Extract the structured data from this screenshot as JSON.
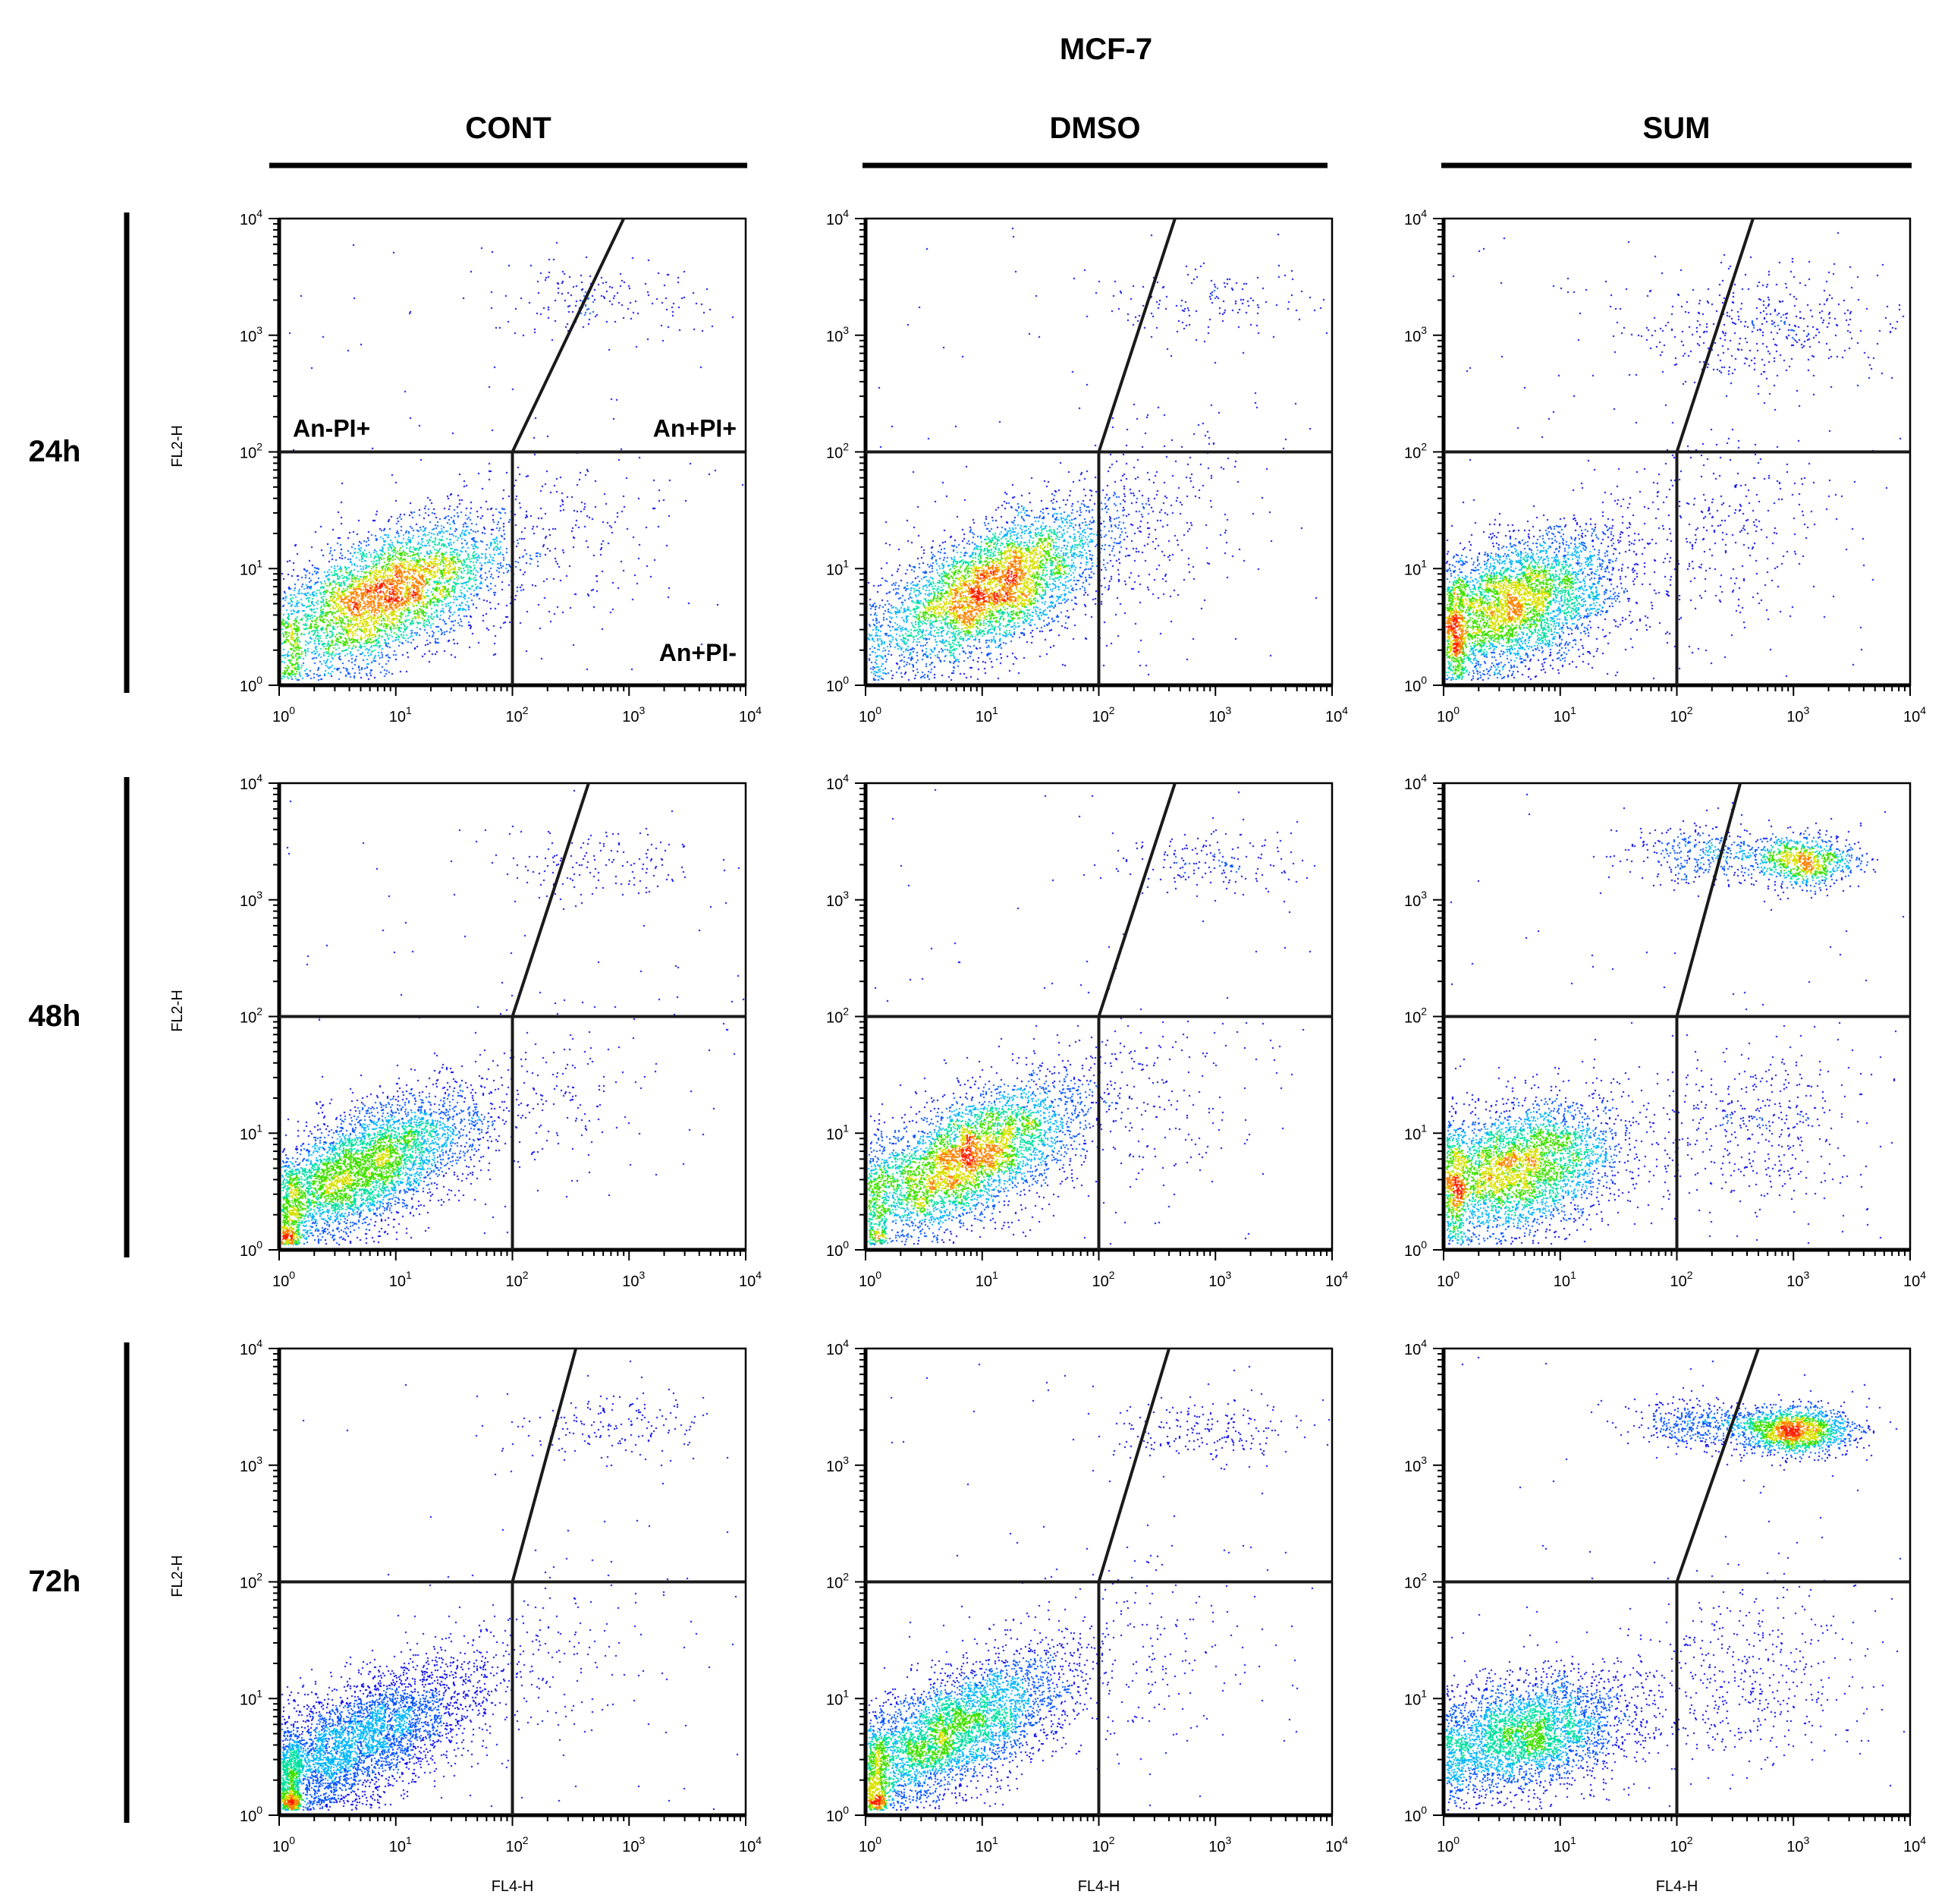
{
  "figure": {
    "title": "MCF-7",
    "columns": [
      "CONT",
      "DMSO",
      "SUM"
    ],
    "rows": [
      "24h",
      "48h",
      "72h"
    ],
    "y_axis_label": "FL2-H",
    "x_axis_label": "FL4-H",
    "tick_exponents": [
      "0",
      "1",
      "2",
      "3",
      "4"
    ],
    "tick_base": "10",
    "quadrant_labels": {
      "upper_left": "An-PI+",
      "upper_right": "An+PI+",
      "lower_right": "An+PI-"
    }
  },
  "colors": {
    "density_scale": [
      "#0000ee",
      "#0050ff",
      "#00b4ff",
      "#00e0a0",
      "#40e000",
      "#d8e000",
      "#ff8000",
      "#ff2000"
    ],
    "gate_line": "#1a1a1a",
    "axis": "#000000"
  },
  "chart_data": {
    "type": "scatter",
    "subtype": "flow-cytometry density dot plot",
    "x_scale": "log",
    "y_scale": "log",
    "xlim": [
      1,
      10000
    ],
    "ylim": [
      1,
      10000
    ],
    "xlabel": "FL4-H",
    "ylabel": "FL2-H",
    "panels": [
      {
        "column": "CONT",
        "row": "24h",
        "gate": {
          "x_threshold": 100,
          "y_threshold": 100,
          "diag_top_x": 900
        },
        "populations": [
          {
            "cx": 8,
            "cy": 6,
            "sx": 0.5,
            "sy": 0.32,
            "rho": 0.55,
            "n": 4200
          },
          {
            "cx": 600,
            "cy": 2000,
            "sx": 0.45,
            "sy": 0.15,
            "rho": 0.0,
            "n": 160
          },
          {
            "cx": 250,
            "cy": 20,
            "sx": 0.5,
            "sy": 0.45,
            "rho": 0.2,
            "n": 220
          }
        ],
        "uniform": 70
      },
      {
        "column": "DMSO",
        "row": "24h",
        "gate": {
          "x_threshold": 100,
          "y_threshold": 100,
          "diag_top_x": 450
        },
        "populations": [
          {
            "cx": 12,
            "cy": 7,
            "sx": 0.5,
            "sy": 0.33,
            "rho": 0.6,
            "n": 4400
          },
          {
            "cx": 800,
            "cy": 2000,
            "sx": 0.45,
            "sy": 0.15,
            "rho": 0.0,
            "n": 140
          },
          {
            "cx": 300,
            "cy": 30,
            "sx": 0.5,
            "sy": 0.5,
            "rho": 0.2,
            "n": 260
          }
        ],
        "uniform": 70
      },
      {
        "column": "SUM",
        "row": "24h",
        "gate": {
          "x_threshold": 100,
          "y_threshold": 100,
          "diag_top_x": 450
        },
        "populations": [
          {
            "cx": 4,
            "cy": 5,
            "sx": 0.45,
            "sy": 0.3,
            "rho": 0.4,
            "n": 4200
          },
          {
            "cx": 500,
            "cy": 1200,
            "sx": 0.55,
            "sy": 0.25,
            "rho": 0.1,
            "n": 420
          },
          {
            "cx": 200,
            "cy": 20,
            "sx": 0.55,
            "sy": 0.5,
            "rho": 0.2,
            "n": 380
          }
        ],
        "uniform": 80
      },
      {
        "column": "CONT",
        "row": "48h",
        "gate": {
          "x_threshold": 100,
          "y_threshold": 100,
          "diag_top_x": 450
        },
        "populations": [
          {
            "cx": 5,
            "cy": 5,
            "sx": 0.5,
            "sy": 0.32,
            "rho": 0.65,
            "n": 4400
          },
          {
            "cx": 600,
            "cy": 2000,
            "sx": 0.45,
            "sy": 0.15,
            "rho": 0.0,
            "n": 150
          },
          {
            "cx": 200,
            "cy": 20,
            "sx": 0.5,
            "sy": 0.45,
            "rho": 0.2,
            "n": 180
          }
        ],
        "uniform": 70
      },
      {
        "column": "DMSO",
        "row": "48h",
        "gate": {
          "x_threshold": 100,
          "y_threshold": 100,
          "diag_top_x": 450
        },
        "populations": [
          {
            "cx": 7,
            "cy": 6,
            "sx": 0.5,
            "sy": 0.33,
            "rho": 0.6,
            "n": 4400
          },
          {
            "cx": 900,
            "cy": 2200,
            "sx": 0.4,
            "sy": 0.15,
            "rho": 0.0,
            "n": 170
          },
          {
            "cx": 250,
            "cy": 20,
            "sx": 0.5,
            "sy": 0.45,
            "rho": 0.2,
            "n": 200
          }
        ],
        "uniform": 70
      },
      {
        "column": "SUM",
        "row": "48h",
        "gate": {
          "x_threshold": 100,
          "y_threshold": 100,
          "diag_top_x": 350
        },
        "populations": [
          {
            "cx": 4,
            "cy": 5,
            "sx": 0.45,
            "sy": 0.28,
            "rho": 0.3,
            "n": 3800
          },
          {
            "cx": 1200,
            "cy": 2200,
            "sx": 0.22,
            "sy": 0.11,
            "rho": 0.0,
            "n": 900
          },
          {
            "cx": 150,
            "cy": 2500,
            "sx": 0.3,
            "sy": 0.12,
            "rho": 0.0,
            "n": 350
          },
          {
            "cx": 500,
            "cy": 12,
            "sx": 0.45,
            "sy": 0.35,
            "rho": 0.1,
            "n": 420
          }
        ],
        "uniform": 90
      },
      {
        "column": "CONT",
        "row": "72h",
        "gate": {
          "x_threshold": 100,
          "y_threshold": 100,
          "diag_top_x": 350
        },
        "populations": [
          {
            "cx": 4,
            "cy": 4,
            "sx": 0.55,
            "sy": 0.35,
            "rho": 0.7,
            "n": 4400
          },
          {
            "cx": 700,
            "cy": 2200,
            "sx": 0.45,
            "sy": 0.15,
            "rho": 0.0,
            "n": 170
          },
          {
            "cx": 200,
            "cy": 20,
            "sx": 0.5,
            "sy": 0.45,
            "rho": 0.2,
            "n": 150
          }
        ],
        "uniform": 60
      },
      {
        "column": "DMSO",
        "row": "72h",
        "gate": {
          "x_threshold": 100,
          "y_threshold": 100,
          "diag_top_x": 400
        },
        "populations": [
          {
            "cx": 5,
            "cy": 5,
            "sx": 0.55,
            "sy": 0.35,
            "rho": 0.7,
            "n": 4400
          },
          {
            "cx": 800,
            "cy": 2000,
            "sx": 0.45,
            "sy": 0.14,
            "rho": 0.0,
            "n": 200
          },
          {
            "cx": 250,
            "cy": 20,
            "sx": 0.5,
            "sy": 0.45,
            "rho": 0.2,
            "n": 180
          }
        ],
        "uniform": 70
      },
      {
        "column": "SUM",
        "row": "72h",
        "gate": {
          "x_threshold": 100,
          "y_threshold": 100,
          "diag_top_x": 500
        },
        "populations": [
          {
            "cx": 5,
            "cy": 5,
            "sx": 0.45,
            "sy": 0.25,
            "rho": 0.3,
            "n": 3400
          },
          {
            "cx": 1000,
            "cy": 2000,
            "sx": 0.25,
            "sy": 0.1,
            "rho": 0.0,
            "n": 1600
          },
          {
            "cx": 150,
            "cy": 2300,
            "sx": 0.3,
            "sy": 0.1,
            "rho": 0.0,
            "n": 400
          },
          {
            "cx": 400,
            "cy": 15,
            "sx": 0.5,
            "sy": 0.4,
            "rho": 0.1,
            "n": 450
          }
        ],
        "uniform": 100
      }
    ]
  }
}
